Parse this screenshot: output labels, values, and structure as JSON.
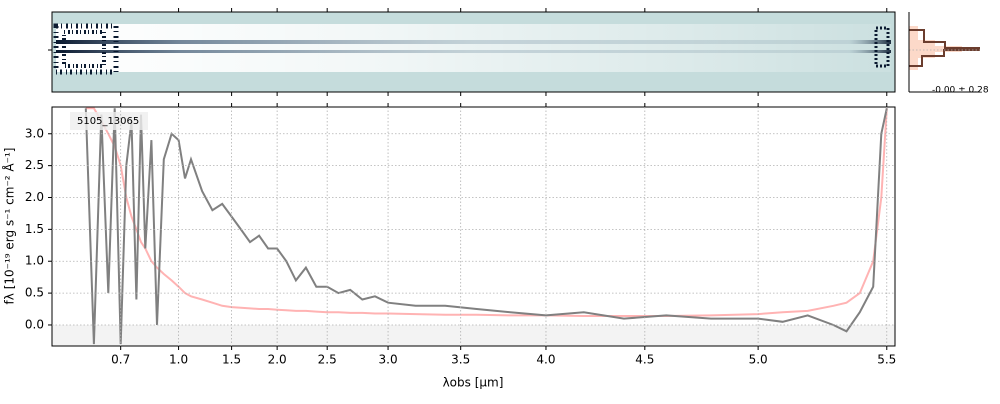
{
  "chart_data": {
    "type": "line",
    "object_label": "5105_13065",
    "stats_label": "-0.00 ± 0.28",
    "xlabel": "λobs [μm]",
    "ylabel": "fλ [10⁻¹⁹ erg s⁻¹ cm⁻² Å⁻¹]",
    "x": [
      0.6,
      0.62,
      0.64,
      0.66,
      0.68,
      0.7,
      0.72,
      0.74,
      0.76,
      0.78,
      0.8,
      0.83,
      0.86,
      0.9,
      0.95,
      1.0,
      1.05,
      1.1,
      1.2,
      1.3,
      1.4,
      1.5,
      1.6,
      1.7,
      1.8,
      1.9,
      2.0,
      2.1,
      2.2,
      2.3,
      2.4,
      2.5,
      2.6,
      2.7,
      2.8,
      2.9,
      3.0,
      3.2,
      3.4,
      3.6,
      3.8,
      4.0,
      4.2,
      4.4,
      4.6,
      4.8,
      5.0,
      5.1,
      5.2,
      5.3,
      5.35,
      5.4,
      5.45,
      5.48,
      5.5
    ],
    "series": [
      {
        "color": "#ffb3b3",
        "values": [
          3.4,
          3.4,
          3.2,
          3.0,
          2.8,
          2.5,
          2.0,
          1.7,
          1.5,
          1.3,
          1.2,
          1.0,
          0.9,
          0.8,
          0.7,
          0.6,
          0.5,
          0.45,
          0.4,
          0.35,
          0.3,
          0.28,
          0.27,
          0.26,
          0.25,
          0.25,
          0.24,
          0.23,
          0.22,
          0.22,
          0.21,
          0.2,
          0.2,
          0.19,
          0.19,
          0.18,
          0.18,
          0.17,
          0.16,
          0.16,
          0.15,
          0.15,
          0.14,
          0.14,
          0.14,
          0.15,
          0.17,
          0.2,
          0.22,
          0.3,
          0.35,
          0.5,
          1.0,
          2.0,
          3.4
        ]
      },
      {
        "color": "#808080",
        "values": [
          3.4,
          -0.3,
          3.3,
          0.5,
          3.4,
          -0.3,
          2.5,
          3.2,
          0.4,
          3.3,
          1.2,
          2.9,
          0.0,
          2.6,
          3.0,
          2.9,
          2.3,
          2.6,
          2.1,
          1.8,
          1.9,
          1.7,
          1.5,
          1.3,
          1.4,
          1.2,
          1.2,
          1.0,
          0.7,
          0.9,
          0.6,
          0.6,
          0.5,
          0.55,
          0.4,
          0.45,
          0.35,
          0.3,
          0.3,
          0.25,
          0.2,
          0.15,
          0.2,
          0.1,
          0.15,
          0.1,
          0.1,
          0.05,
          0.15,
          0.0,
          -0.1,
          0.2,
          0.6,
          3.0,
          3.4
        ]
      }
    ],
    "xlim": [
      0.53,
      5.53
    ],
    "xticks": [
      0.7,
      {
        "value": 1,
        "label": "1.0"
      },
      1.5,
      {
        "value": 2,
        "label": "2.0"
      },
      2.5,
      {
        "value": 3,
        "label": "3.0"
      },
      3.5,
      {
        "value": 4,
        "label": "4.0"
      },
      4.5,
      {
        "value": 5,
        "label": "5.0"
      },
      5.5
    ],
    "ylim": [
      -0.33,
      3.42
    ],
    "yticks": [
      {
        "value": 0,
        "label": "0.0"
      },
      0.5,
      {
        "value": 1,
        "label": "1.0"
      },
      1.5,
      {
        "value": 2,
        "label": "2.0"
      },
      2.5,
      {
        "value": 3,
        "label": "3.0"
      }
    ],
    "grid": true
  }
}
